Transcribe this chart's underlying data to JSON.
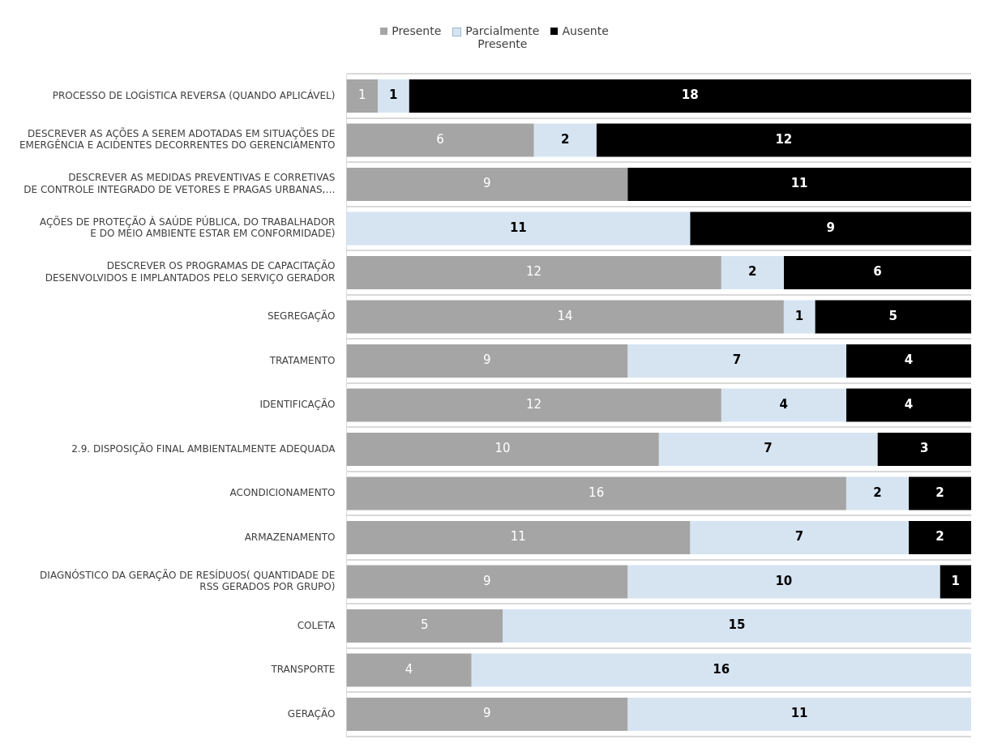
{
  "chart_data": {
    "type": "bar",
    "orientation": "horizontal",
    "stacked": true,
    "legend": "top",
    "grid": "y",
    "data_labels": true,
    "categories": [
      "PROCESSO DE LOGÍSTICA REVERSA (QUANDO APLICÁVEL)",
      "DESCREVER AS AÇÕES A SEREM ADOTADAS EM SITUAÇÕES DE\nEMERGÊNCIA E ACIDENTES DECORRENTES DO GERENCIAMENTO",
      "DESCREVER AS MEDIDAS PREVENTIVAS E CORRETIVAS\nDE CONTROLE INTEGRADO DE VETORES E PRAGAS URBANAS,…",
      "AÇÕES DE PROTEÇÃO À SAÚDE PÚBLICA, DO TRABALHADOR\nE DO MEIO AMBIENTE ESTAR EM CONFORMIDADE)",
      "DESCREVER OS PROGRAMAS DE CAPACITAÇÃO\nDESENVOLVIDOS E IMPLANTADOS PELO SERVIÇO GERADOR",
      "SEGREGAÇÃO",
      "TRATAMENTO",
      "IDENTIFICAÇÃO",
      "2.9. DISPOSIÇÃO FINAL AMBIENTALMENTE ADEQUADA",
      "ACONDICIONAMENTO",
      "ARMAZENAMENTO",
      "DIAGNÓSTICO DA GERAÇÃO DE RESÍDUOS( QUANTIDADE DE\nRSS GERADOS POR GRUPO)",
      "COLETA",
      "TRANSPORTE",
      "GERAÇÃO"
    ],
    "series": [
      {
        "name": "Presente",
        "color": "#a5a5a5",
        "values": [
          1,
          6,
          9,
          null,
          12,
          14,
          9,
          12,
          10,
          16,
          11,
          9,
          5,
          4,
          9
        ]
      },
      {
        "name": "Parcialmente\nPresente",
        "color": "#d6e4f2",
        "values": [
          1,
          2,
          null,
          11,
          2,
          1,
          7,
          4,
          7,
          2,
          7,
          10,
          15,
          16,
          11
        ]
      },
      {
        "name": "Ausente",
        "color": "#000000",
        "values": [
          18,
          12,
          11,
          9,
          6,
          5,
          4,
          4,
          3,
          2,
          2,
          1,
          null,
          null,
          null
        ]
      }
    ]
  }
}
